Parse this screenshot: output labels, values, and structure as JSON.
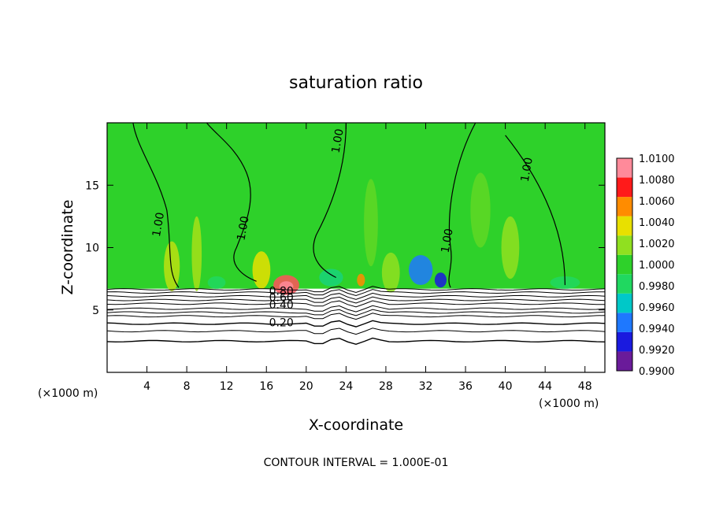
{
  "chart_data": {
    "type": "heatmap",
    "title": "saturation ratio",
    "xlabel": "X-coordinate",
    "ylabel": "Z-coordinate",
    "x_unit_label": "(×1000 m)",
    "x_unit_label_right": "(×1000 m)",
    "xlim": [
      0,
      50
    ],
    "ylim": [
      0,
      20
    ],
    "x_ticks": [
      4,
      8,
      12,
      16,
      20,
      24,
      28,
      32,
      36,
      40,
      44,
      48
    ],
    "y_ticks": [
      5,
      10,
      15
    ],
    "note": "CONTOUR INTERVAL = 1.000E-01",
    "colorbar": {
      "values": [
        0.99,
        0.992,
        0.994,
        0.996,
        0.998,
        1.0,
        1.002,
        1.004,
        1.006,
        1.008,
        1.01
      ],
      "labels": [
        "0.9900",
        "0.9920",
        "0.9940",
        "0.9960",
        "0.9980",
        "1.0000",
        "1.0020",
        "1.0040",
        "1.0060",
        "1.0080",
        "1.0100"
      ],
      "colors": [
        "#6a1b9a",
        "#1a1adf",
        "#1e78ff",
        "#00c8c8",
        "#20d860",
        "#2ed12a",
        "#90e020",
        "#e8e000",
        "#ff8c00",
        "#ff1a1a",
        "#ff8a9a"
      ]
    },
    "background_value": 1.0,
    "cloud_base_z": 6.7,
    "contour_labels": [
      {
        "x": 5.5,
        "z": 11.8,
        "text": "1.00"
      },
      {
        "x": 14.0,
        "z": 11.5,
        "text": "1.00"
      },
      {
        "x": 23.5,
        "z": 18.5,
        "text": "1.00"
      },
      {
        "x": 34.5,
        "z": 10.5,
        "text": "1.00"
      },
      {
        "x": 42.5,
        "z": 16.2,
        "text": "1.00"
      },
      {
        "x": 17.5,
        "z": 6.2,
        "text": "0.80"
      },
      {
        "x": 17.5,
        "z": 5.7,
        "text": "0.60"
      },
      {
        "x": 17.5,
        "z": 5.1,
        "text": "0.40"
      },
      {
        "x": 17.5,
        "z": 3.7,
        "text": "0.20"
      }
    ]
  }
}
